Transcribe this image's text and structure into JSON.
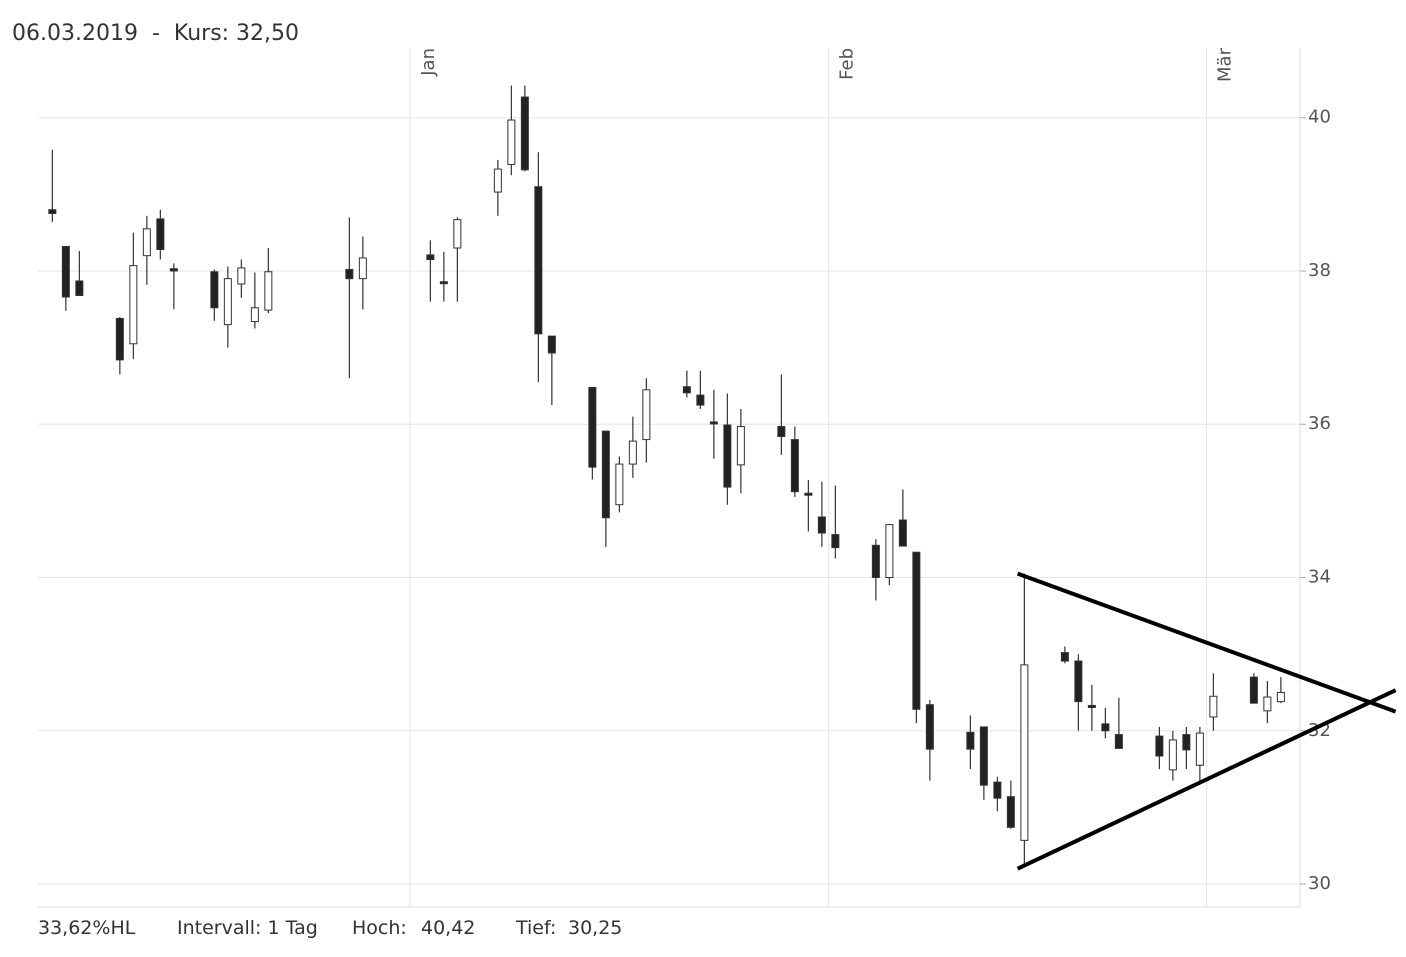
{
  "chart_data": {
    "type": "candlestick",
    "title": "06.03.2019  -  Kurs: 32,50",
    "stats": [
      "33,62%HL",
      "Intervall: 1 Tag",
      "Hoch:",
      "40,42",
      "Tief:",
      "30,25"
    ],
    "x": [
      "2018-12-05",
      "2018-12-06",
      "2018-12-07",
      "2018-12-10",
      "2018-12-11",
      "2018-12-12",
      "2018-12-13",
      "2018-12-14",
      "2018-12-17",
      "2018-12-18",
      "2018-12-19",
      "2018-12-20",
      "2018-12-21",
      "2018-12-27",
      "2018-12-28",
      "2019-01-02",
      "2019-01-03",
      "2019-01-04",
      "2019-01-07",
      "2019-01-08",
      "2019-01-09",
      "2019-01-10",
      "2019-01-11",
      "2019-01-14",
      "2019-01-15",
      "2019-01-16",
      "2019-01-17",
      "2019-01-18",
      "2019-01-21",
      "2019-01-22",
      "2019-01-23",
      "2019-01-24",
      "2019-01-25",
      "2019-01-28",
      "2019-01-29",
      "2019-01-30",
      "2019-01-31",
      "2019-02-01",
      "2019-02-04",
      "2019-02-05",
      "2019-02-06",
      "2019-02-07",
      "2019-02-08",
      "2019-02-11",
      "2019-02-12",
      "2019-02-13",
      "2019-02-14",
      "2019-02-15",
      "2019-02-18",
      "2019-02-19",
      "2019-02-20",
      "2019-02-21",
      "2019-02-22",
      "2019-02-25",
      "2019-02-26",
      "2019-02-27",
      "2019-02-28",
      "2019-03-01",
      "2019-03-04",
      "2019-03-05",
      "2019-03-06"
    ],
    "open": [
      38.8,
      38.32,
      37.87,
      37.38,
      37.05,
      38.2,
      38.68,
      38.03,
      37.99,
      37.3,
      37.83,
      37.34,
      37.49,
      38.02,
      37.9,
      38.21,
      37.86,
      38.3,
      39.03,
      39.39,
      40.27,
      39.1,
      37.15,
      36.48,
      35.91,
      34.95,
      35.48,
      35.8,
      36.49,
      36.38,
      36.03,
      35.99,
      35.47,
      35.97,
      35.8,
      35.1,
      34.79,
      34.56,
      34.42,
      34.0,
      34.75,
      34.33,
      32.34,
      31.98,
      32.05,
      31.33,
      31.14,
      30.57,
      33.02,
      32.91,
      32.33,
      32.09,
      31.95,
      31.93,
      31.49,
      31.95,
      31.55,
      32.18,
      32.7,
      32.26,
      32.38
    ],
    "high": [
      39.58,
      38.32,
      38.26,
      37.4,
      38.5,
      38.72,
      38.8,
      38.1,
      38.02,
      38.06,
      38.15,
      37.98,
      38.3,
      38.7,
      38.45,
      38.4,
      38.25,
      38.7,
      39.45,
      40.42,
      40.42,
      39.55,
      37.15,
      36.48,
      35.9,
      35.58,
      36.1,
      36.6,
      36.7,
      36.7,
      36.45,
      36.4,
      36.2,
      36.65,
      35.97,
      35.27,
      35.25,
      35.2,
      34.5,
      34.7,
      35.15,
      34.33,
      32.4,
      32.2,
      32.05,
      31.4,
      31.35,
      34.05,
      33.1,
      33.0,
      32.6,
      32.3,
      32.43,
      32.05,
      32.0,
      32.05,
      32.05,
      32.75,
      32.75,
      32.65,
      32.7
    ],
    "low": [
      38.64,
      37.48,
      37.68,
      36.65,
      36.85,
      37.82,
      38.15,
      37.5,
      37.35,
      37.0,
      37.65,
      37.25,
      37.45,
      36.6,
      37.5,
      37.6,
      37.6,
      37.6,
      38.72,
      39.25,
      39.3,
      36.55,
      36.25,
      35.28,
      34.4,
      34.85,
      35.3,
      35.5,
      36.35,
      36.2,
      35.55,
      34.95,
      35.1,
      35.6,
      35.05,
      34.6,
      34.4,
      34.25,
      33.7,
      33.9,
      34.41,
      32.1,
      31.35,
      31.5,
      31.1,
      30.95,
      30.72,
      30.25,
      32.88,
      32.0,
      32.0,
      31.9,
      31.77,
      31.5,
      31.35,
      31.5,
      31.35,
      32.0,
      32.36,
      32.1,
      32.36
    ],
    "close": [
      38.75,
      37.66,
      37.68,
      36.84,
      38.07,
      38.55,
      38.28,
      38.0,
      37.52,
      37.9,
      38.04,
      37.52,
      37.99,
      37.9,
      38.17,
      38.15,
      37.84,
      38.67,
      39.33,
      39.97,
      39.32,
      37.18,
      36.93,
      35.44,
      34.78,
      35.48,
      35.78,
      36.45,
      36.41,
      36.25,
      36.01,
      35.18,
      35.97,
      35.84,
      35.12,
      35.08,
      34.58,
      34.39,
      34.0,
      34.69,
      34.41,
      32.28,
      31.76,
      31.76,
      31.29,
      31.12,
      30.74,
      32.86,
      32.91,
      32.38,
      32.31,
      32.0,
      31.77,
      31.67,
      31.88,
      31.75,
      31.97,
      32.45,
      32.36,
      32.44,
      32.5
    ],
    "up_color": "#ffffff",
    "down_color": "#222222",
    "edge_color": "#333333",
    "xlim": [
      "2018-12-04T10:30",
      "2019-03-07T22:00"
    ],
    "xticks": [
      {
        "value": "2019-01-01",
        "label": "Jan"
      },
      {
        "value": "2019-02-01",
        "label": "Feb"
      },
      {
        "value": "2019-03-01",
        "label": "Mär"
      }
    ],
    "ylim": [
      29.7,
      40.91
    ],
    "yticks": [
      30,
      32,
      34,
      36,
      38,
      40
    ],
    "grid": true,
    "trendlines": [
      {
        "x": [
          "2019-02-15",
          "2019-03-15"
        ],
        "y": [
          34.05,
          32.25
        ],
        "color": "#000000"
      },
      {
        "x": [
          "2019-02-15",
          "2019-03-15"
        ],
        "y": [
          30.2,
          32.53
        ],
        "color": "#000000"
      }
    ]
  }
}
